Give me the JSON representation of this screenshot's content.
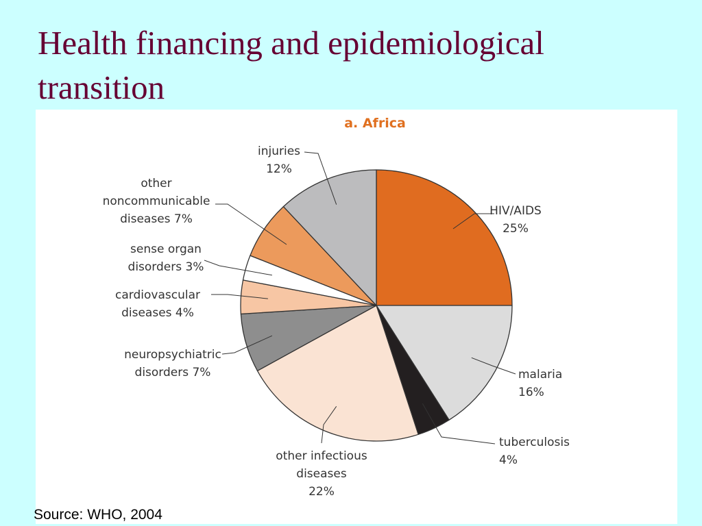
{
  "slide": {
    "title": "Health financing and epidemiological transition",
    "source": "Source: WHO, 2004"
  },
  "chart_data": {
    "type": "pie",
    "title": "a. Africa",
    "title_color": "#e07020",
    "slices": [
      {
        "lines": [
          "HIV/AIDS",
          "25%"
        ],
        "value": 25,
        "color": "#e06c20"
      },
      {
        "lines": [
          "malaria",
          "16%"
        ],
        "value": 16,
        "color": "#dcdcdc"
      },
      {
        "lines": [
          "tuberculosis",
          "4%"
        ],
        "value": 4,
        "color": "#231f20"
      },
      {
        "lines": [
          "other infectious",
          "diseases",
          "22%"
        ],
        "value": 22,
        "color": "#fae3d3"
      },
      {
        "lines": [
          "neuropsychiatric",
          "disorders 7%"
        ],
        "value": 7,
        "color": "#8e8e8e"
      },
      {
        "lines": [
          "cardiovascular",
          "diseases 4%"
        ],
        "value": 4,
        "color": "#f7c6a4"
      },
      {
        "lines": [
          "sense organ",
          "disorders 3%"
        ],
        "value": 3,
        "color": "#ffffff"
      },
      {
        "lines": [
          "other",
          "noncommunicable",
          "diseases 7%"
        ],
        "value": 7,
        "color": "#ec9a5c"
      },
      {
        "lines": [
          "injuries",
          "12%"
        ],
        "value": 12,
        "color": "#bcbcbe"
      }
    ]
  }
}
